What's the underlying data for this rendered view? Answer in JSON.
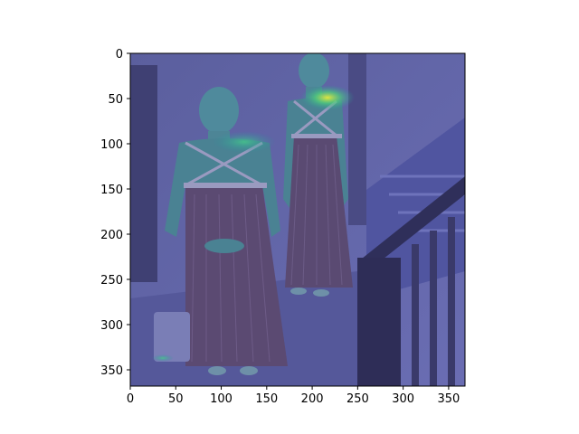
{
  "figure": {
    "image_description_name": "heatmap-overlay-photo",
    "x_ticks": [
      "0",
      "50",
      "100",
      "150",
      "200",
      "250",
      "300",
      "350"
    ],
    "y_ticks": [
      "0",
      "50",
      "100",
      "150",
      "200",
      "250",
      "300",
      "350"
    ],
    "x_tick_values": [
      0,
      50,
      100,
      150,
      200,
      250,
      300,
      350
    ],
    "y_tick_values": [
      0,
      50,
      100,
      150,
      200,
      250,
      300,
      350
    ],
    "x_range": [
      0,
      368
    ],
    "y_range": [
      0,
      368
    ],
    "colors": {
      "background_wash": "#5f63a8",
      "shadow": "#3d3e75",
      "figure_tone": "#5a4e78",
      "skin_tone": "#4f8a9c",
      "heat_hot": "#d9e83a",
      "heat_warm": "#37c489"
    }
  }
}
